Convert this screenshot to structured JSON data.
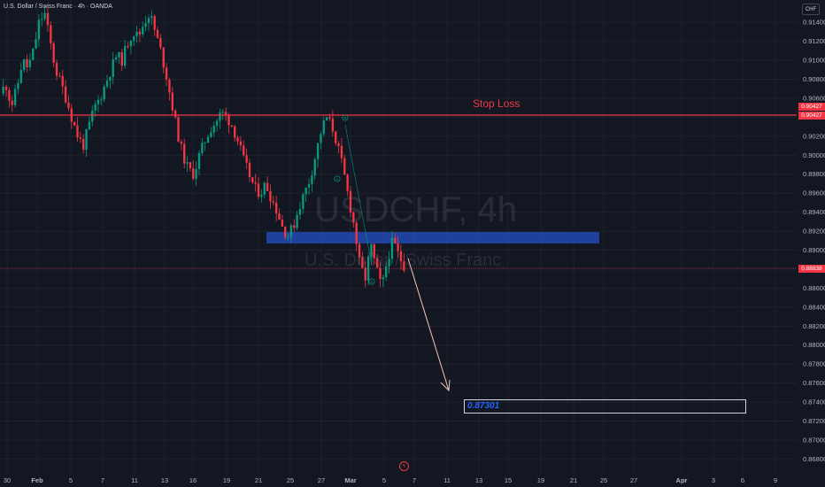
{
  "symbol_title": "U.S. Dollar / Swiss Franc · 4h · OANDA",
  "currency": "CHF",
  "watermark": {
    "ticker": "USDCHF, 4h",
    "name": "U.S. Dollar / Swiss Franc"
  },
  "annotations": {
    "stop_loss_label": "Stop Loss",
    "target_label": "0.87301",
    "waves": [
      "B",
      "A",
      "C"
    ]
  },
  "price_badges": {
    "stop_loss": "0.90427",
    "stop_loss_2": "0.90427",
    "last_price": "0.88838"
  },
  "flash_icon": "flash-icon",
  "colors": {
    "up": "#089981",
    "down": "#f23645",
    "zone": "#2962ff",
    "background": "#131722"
  },
  "chart_data": {
    "type": "candlestick",
    "y_axis_ticks": [
      "0.91400",
      "0.91200",
      "0.91000",
      "0.90800",
      "0.90600",
      "0.90400",
      "0.90200",
      "0.90000",
      "0.89800",
      "0.89600",
      "0.89400",
      "0.89200",
      "0.89000",
      "0.88800",
      "0.88600",
      "0.88400",
      "0.88200",
      "0.88000",
      "0.87800",
      "0.87600",
      "0.87400",
      "0.87200",
      "0.87000",
      "0.86800"
    ],
    "y_axis_values": [
      0.914,
      0.912,
      0.91,
      0.908,
      0.906,
      0.904,
      0.902,
      0.9,
      0.898,
      0.896,
      0.894,
      0.892,
      0.89,
      0.888,
      0.886,
      0.884,
      0.882,
      0.88,
      0.878,
      0.876,
      0.874,
      0.872,
      0.87,
      0.868
    ],
    "x_axis_ticks": [
      "30",
      "Feb",
      "5",
      "7",
      "11",
      "13",
      "16",
      "19",
      "21",
      "25",
      "27",
      "Mar",
      "5",
      "7",
      "11",
      "13",
      "15",
      "19",
      "21",
      "25",
      "27",
      "Apr",
      "3",
      "6",
      "9"
    ],
    "ylim": [
      0.8672,
      0.9156
    ],
    "stop_loss": 0.90427,
    "target": 0.87301,
    "last_price": 0.88838,
    "zone": [
      0.8909,
      0.8921
    ],
    "projection": {
      "from": 0.8894,
      "to": 0.8757
    },
    "price_path": [
      0.9065,
      0.9075,
      0.9052,
      0.907,
      0.91,
      0.9092,
      0.911,
      0.914,
      0.915,
      0.912,
      0.909,
      0.9075,
      0.9058,
      0.9038,
      0.902,
      0.901,
      0.903,
      0.905,
      0.906,
      0.9075,
      0.909,
      0.9105,
      0.91,
      0.9118,
      0.913,
      0.9125,
      0.914,
      0.915,
      0.913,
      0.911,
      0.9085,
      0.9055,
      0.9025,
      0.9,
      0.8985,
      0.898,
      0.9,
      0.9015,
      0.9028,
      0.9035,
      0.9045,
      0.904,
      0.903,
      0.9015,
      0.8995,
      0.898,
      0.8965,
      0.896,
      0.897,
      0.8955,
      0.8942,
      0.8925,
      0.8915,
      0.8925,
      0.8945,
      0.896,
      0.8975,
      0.9,
      0.9025,
      0.904,
      0.903,
      0.901,
      0.8985,
      0.8955,
      0.8925,
      0.8885,
      0.887,
      0.8905,
      0.888,
      0.886,
      0.889,
      0.891,
      0.8895,
      0.8884
    ]
  }
}
